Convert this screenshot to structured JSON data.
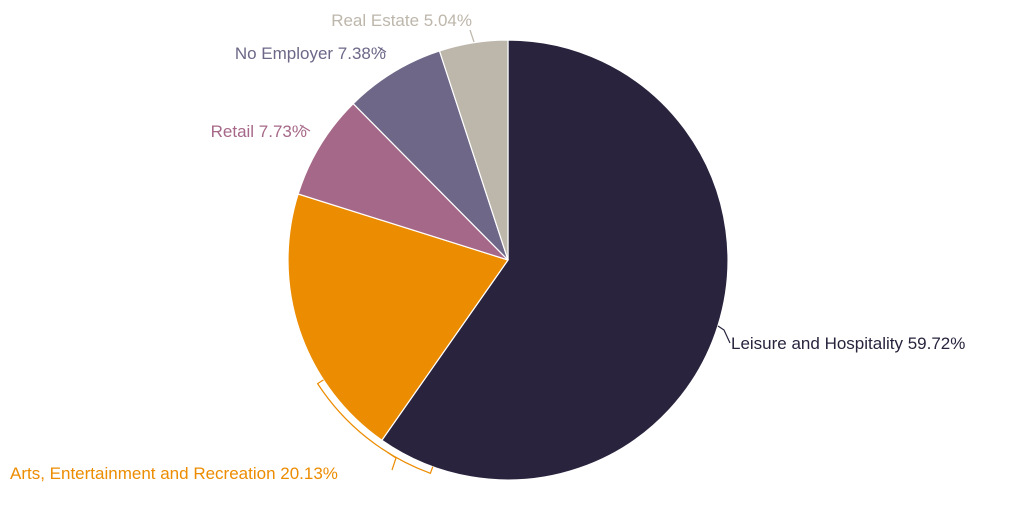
{
  "chart_data": {
    "type": "pie",
    "title": "",
    "start": "top, clockwise",
    "slices": [
      {
        "label": "Leisure and Hospitality",
        "value": 59.72,
        "text": "Leisure and Hospitality 59.72%",
        "color": "#29233d"
      },
      {
        "label": "Arts, Entertainment and Recreation",
        "value": 20.13,
        "text": "Arts, Entertainment and Recreation 20.13%",
        "color": "#ec8c00"
      },
      {
        "label": "Retail",
        "value": 7.73,
        "text": "Retail 7.73%",
        "color": "#a66888"
      },
      {
        "label": "No Employer",
        "value": 7.38,
        "text": "No Employer 7.38%",
        "color": "#6e6788"
      },
      {
        "label": "Real Estate",
        "value": 5.04,
        "text": "Real Estate 5.04%",
        "color": "#bdb6ab"
      }
    ]
  }
}
